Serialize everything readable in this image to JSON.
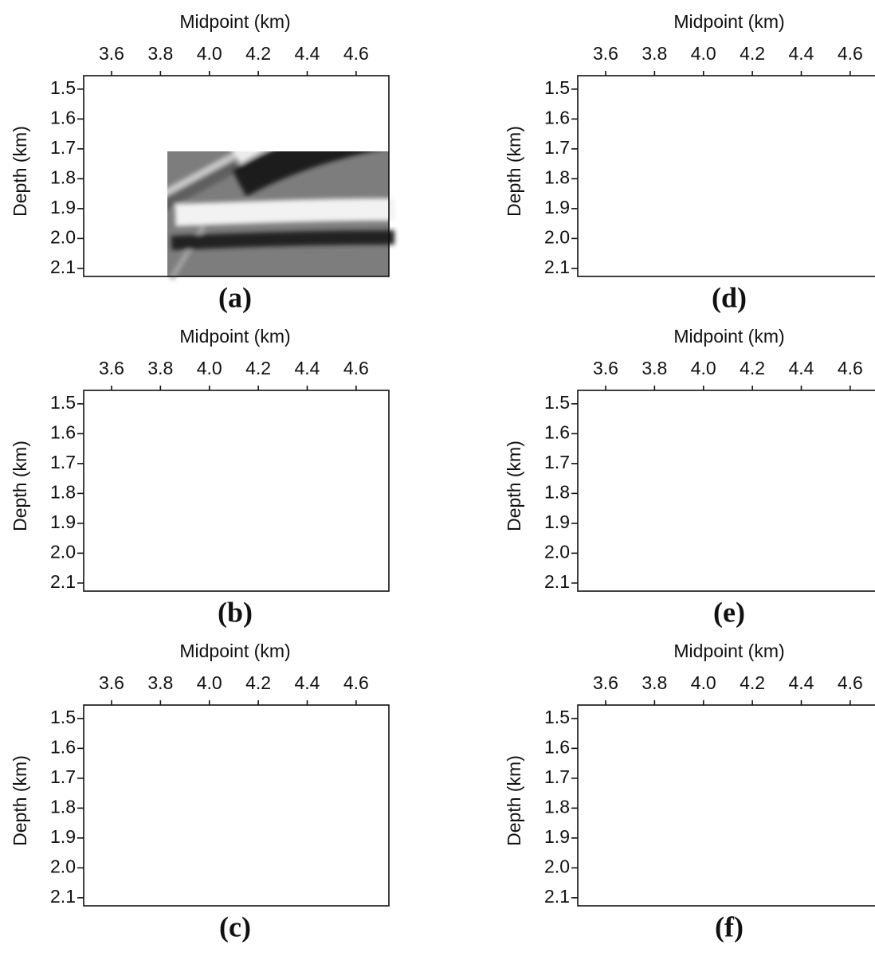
{
  "chart_data": [
    {
      "type": "image",
      "caption": "(a)",
      "x_label": "Midpoint (km)",
      "y_label": "Depth (km)",
      "xlim": [
        3.486,
        4.734
      ],
      "ylim": [
        1.455,
        2.127
      ],
      "xticks": [
        3.6,
        3.8,
        {
          "value": 4.0,
          "label": "4.0"
        },
        4.2,
        4.4,
        4.6
      ],
      "yticks": [
        1.5,
        1.6,
        1.7,
        1.8,
        1.9,
        {
          "value": 2.0,
          "label": "2.0"
        },
        2.1
      ]
    },
    {
      "type": "image",
      "caption": "(b)",
      "x_label": "Midpoint (km)",
      "y_label": "Depth (km)",
      "xlim": [
        3.486,
        4.734
      ],
      "ylim": [
        1.455,
        2.127
      ],
      "xticks": [
        3.6,
        3.8,
        {
          "value": 4.0,
          "label": "4.0"
        },
        4.2,
        4.4,
        4.6
      ],
      "yticks": [
        1.5,
        1.6,
        1.7,
        1.8,
        1.9,
        {
          "value": 2.0,
          "label": "2.0"
        },
        2.1
      ]
    },
    {
      "type": "image",
      "caption": "(c)",
      "x_label": "Midpoint (km)",
      "y_label": "Depth (km)",
      "xlim": [
        3.486,
        4.734
      ],
      "ylim": [
        1.455,
        2.127
      ],
      "xticks": [
        3.6,
        3.8,
        {
          "value": 4.0,
          "label": "4.0"
        },
        4.2,
        4.4,
        4.6
      ],
      "yticks": [
        1.5,
        1.6,
        1.7,
        1.8,
        1.9,
        {
          "value": 2.0,
          "label": "2.0"
        },
        2.1
      ]
    },
    {
      "type": "image",
      "caption": "(d)",
      "x_label": "Midpoint (km)",
      "y_label": "Depth (km)",
      "xlim": [
        3.486,
        4.734
      ],
      "ylim": [
        1.455,
        2.127
      ],
      "xticks": [
        3.6,
        3.8,
        {
          "value": 4.0,
          "label": "4.0"
        },
        4.2,
        4.4,
        4.6
      ],
      "yticks": [
        1.5,
        1.6,
        1.7,
        1.8,
        1.9,
        {
          "value": 2.0,
          "label": "2.0"
        },
        2.1
      ]
    },
    {
      "type": "image",
      "caption": "(e)",
      "x_label": "Midpoint (km)",
      "y_label": "Depth (km)",
      "xlim": [
        3.486,
        4.734
      ],
      "ylim": [
        1.455,
        2.127
      ],
      "xticks": [
        3.6,
        3.8,
        {
          "value": 4.0,
          "label": "4.0"
        },
        4.2,
        4.4,
        4.6
      ],
      "yticks": [
        1.5,
        1.6,
        1.7,
        1.8,
        1.9,
        {
          "value": 2.0,
          "label": "2.0"
        },
        2.1
      ]
    },
    {
      "type": "image",
      "caption": "(f)",
      "x_label": "Midpoint (km)",
      "y_label": "Depth (km)",
      "xlim": [
        3.486,
        4.734
      ],
      "ylim": [
        1.455,
        2.127
      ],
      "xticks": [
        3.6,
        3.8,
        {
          "value": 4.0,
          "label": "4.0"
        },
        4.2,
        4.4,
        4.6
      ],
      "yticks": [
        1.5,
        1.6,
        1.7,
        1.8,
        1.9,
        {
          "value": 2.0,
          "label": "2.0"
        },
        2.1
      ]
    }
  ]
}
